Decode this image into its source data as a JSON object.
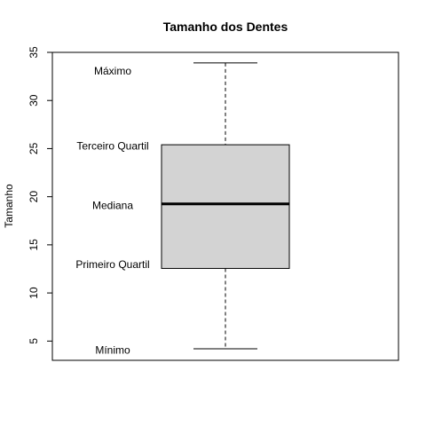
{
  "chart_data": {
    "type": "box",
    "title": "Tamanho dos Dentes",
    "xlabel": "",
    "ylabel": "Tamanho",
    "ylim": [
      3,
      35
    ],
    "yticks": [
      5,
      10,
      15,
      20,
      25,
      30,
      35
    ],
    "grid": false,
    "box": {
      "min": 4.2,
      "q1": 12.55,
      "median": 19.25,
      "q3": 25.4,
      "max": 33.9,
      "fill_color": "#d3d3d3",
      "line_color": "#000000"
    },
    "annotations": [
      {
        "text": "Máximo",
        "y": 33
      },
      {
        "text": "Terceiro Quartil",
        "y": 25.2
      },
      {
        "text": "Mediana",
        "y": 19
      },
      {
        "text": "Primeiro Quartil",
        "y": 12.9
      },
      {
        "text": "Mínimo",
        "y": 4
      }
    ]
  }
}
